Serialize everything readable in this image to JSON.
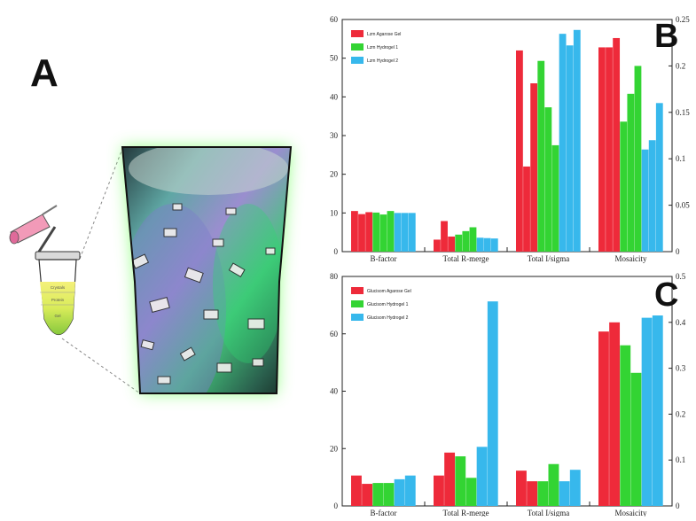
{
  "panel_labels": {
    "a": "A",
    "b": "B",
    "c": "C"
  },
  "tube_labels": {
    "top": "Crystals",
    "middle": "Protein",
    "bottom": "Gel"
  },
  "colors": {
    "agarose": "#ee2a3a",
    "hydrogel1": "#33d433",
    "hydrogel2": "#37b8ec",
    "glow": "#7bff6b"
  },
  "chart_data": [
    {
      "type": "bar",
      "panel": "B",
      "categories": [
        "B-factor",
        "Total R-merge",
        "Total I/sigma",
        "Mosaicity"
      ],
      "left_axis": {
        "ylim": [
          0,
          60
        ],
        "ticks": [
          0,
          10,
          20,
          30,
          40,
          50,
          60
        ]
      },
      "right_axis": {
        "ylim": [
          0,
          0.25
        ],
        "ticks": [
          "0",
          "0.05",
          "0.1",
          "0.15",
          "0.2",
          "0.25"
        ]
      },
      "series": [
        {
          "name": "Lzm Agarose Gel",
          "color": "#ee2a3a",
          "values": [
            [
              10.5,
              9.7,
              10.2
            ],
            [
              3.1,
              7.9,
              3.9
            ],
            [
              52,
              22,
              43.5
            ],
            [
              0.22,
              0.22,
              0.23
            ]
          ]
        },
        {
          "name": "Lzm Hydrogel 1",
          "color": "#33d433",
          "values": [
            [
              10.1,
              9.6,
              10.5
            ],
            [
              4.4,
              5.3,
              6.3
            ],
            [
              49.3,
              37.3,
              27.5
            ],
            [
              0.14,
              0.17,
              0.2
            ]
          ]
        },
        {
          "name": "Lzm Hydrogel 2",
          "color": "#37b8ec",
          "values": [
            [
              10.0,
              10.0,
              10.0
            ],
            [
              3.6,
              3.5,
              3.4
            ],
            [
              56.3,
              53.3,
              57.3
            ],
            [
              0.11,
              0.12,
              0.16
            ]
          ]
        }
      ]
    },
    {
      "type": "bar",
      "panel": "C",
      "categories": [
        "B-factor",
        "Total R-merge",
        "Total I/sigma",
        "Mosaicity"
      ],
      "left_axis": {
        "ylim": [
          0,
          80
        ],
        "ticks": [
          0,
          20,
          40,
          60,
          80
        ]
      },
      "right_axis": {
        "ylim": [
          0,
          0.5
        ],
        "ticks": [
          "0",
          "0.1",
          "0.2",
          "0.3",
          "0.4",
          "0.5"
        ]
      },
      "series": [
        {
          "name": "Glucisom Agarose Gel",
          "color": "#ee2a3a",
          "values": [
            [
              10.6,
              7.7,
              null
            ],
            [
              10.6,
              18.6,
              null
            ],
            [
              12.3,
              8.6,
              null
            ],
            [
              0.38,
              0.4,
              null
            ]
          ]
        },
        {
          "name": "Glucisom Hydrogel 1",
          "color": "#33d433",
          "values": [
            [
              8.0,
              8.0,
              null
            ],
            [
              17.3,
              9.8,
              null
            ],
            [
              8.6,
              14.6,
              null
            ],
            [
              0.35,
              0.29,
              null
            ]
          ]
        },
        {
          "name": "Glucisom Hydrogel 2",
          "color": "#37b8ec",
          "values": [
            [
              9.3,
              10.6,
              null
            ],
            [
              20.6,
              71.3,
              null
            ],
            [
              8.6,
              12.6,
              null
            ],
            [
              0.41,
              0.415,
              null
            ]
          ]
        }
      ]
    }
  ]
}
